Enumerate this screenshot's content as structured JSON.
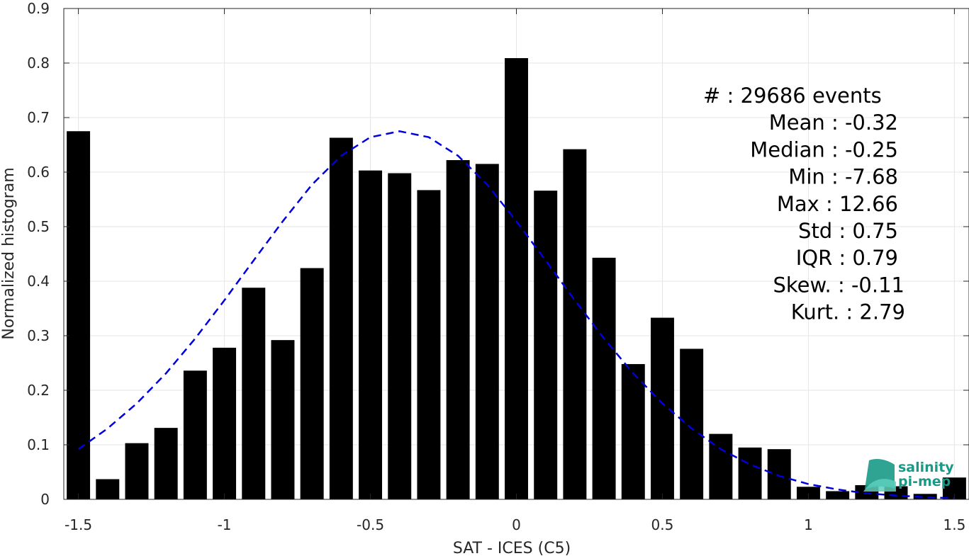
{
  "chart_data": {
    "type": "bar",
    "xlabel": "SAT - ICES (C5)",
    "ylabel": "Normalized histogram",
    "xlim": [
      -1.55,
      1.55
    ],
    "ylim": [
      0,
      0.9
    ],
    "grid": true,
    "x_ticks": [
      -1.5,
      -1,
      -0.5,
      0,
      0.5,
      1,
      1.5
    ],
    "x_tick_labels": [
      "-1.5",
      "-1",
      "-0.5",
      "0",
      "0.5",
      "1",
      "1.5"
    ],
    "y_ticks": [
      0,
      0.1,
      0.2,
      0.3,
      0.4,
      0.5,
      0.6,
      0.7,
      0.8,
      0.9
    ],
    "y_tick_labels": [
      "0",
      "0.1",
      "0.2",
      "0.3",
      "0.4",
      "0.5",
      "0.6",
      "0.7",
      "0.8",
      "0.9"
    ],
    "bars": {
      "x": [
        -1.5,
        -1.4,
        -1.3,
        -1.2,
        -1.1,
        -1.0,
        -0.9,
        -0.8,
        -0.7,
        -0.6,
        -0.5,
        -0.4,
        -0.3,
        -0.2,
        -0.1,
        0.0,
        0.1,
        0.2,
        0.3,
        0.4,
        0.5,
        0.6,
        0.7,
        0.8,
        0.9,
        1.0,
        1.1,
        1.2,
        1.3,
        1.4,
        1.5
      ],
      "values": [
        0.675,
        0.037,
        0.103,
        0.131,
        0.236,
        0.278,
        0.388,
        0.292,
        0.424,
        0.663,
        0.603,
        0.598,
        0.567,
        0.622,
        0.615,
        0.809,
        0.566,
        0.642,
        0.443,
        0.248,
        0.333,
        0.276,
        0.12,
        0.095,
        0.092,
        0.023,
        0.015,
        0.026,
        0.024,
        0.01,
        0.04
      ],
      "width": 0.08,
      "color": "#000000"
    },
    "fit_curve": {
      "style": "dashed",
      "color": "#0000dd",
      "x": [
        -1.5,
        -1.4,
        -1.3,
        -1.2,
        -1.1,
        -1.0,
        -0.9,
        -0.8,
        -0.7,
        -0.6,
        -0.5,
        -0.4,
        -0.3,
        -0.2,
        -0.1,
        0.0,
        0.1,
        0.2,
        0.3,
        0.4,
        0.5,
        0.6,
        0.7,
        0.8,
        0.9,
        1.0,
        1.1,
        1.2,
        1.3,
        1.4,
        1.5
      ],
      "y": [
        0.092,
        0.13,
        0.176,
        0.231,
        0.295,
        0.365,
        0.438,
        0.51,
        0.577,
        0.63,
        0.664,
        0.675,
        0.664,
        0.63,
        0.577,
        0.51,
        0.438,
        0.365,
        0.295,
        0.231,
        0.176,
        0.13,
        0.092,
        0.064,
        0.043,
        0.028,
        0.018,
        0.011,
        0.007,
        0.004,
        0.002
      ]
    },
    "annotations": [
      "#  : 29686 events",
      "Mean : -0.32",
      "Median : -0.25",
      "Min : -7.68",
      "Max : 12.66",
      "Std : 0.75",
      "IQR : 0.79",
      "Skew. : -0.11",
      "Kurt. : 2.79"
    ]
  },
  "logo": {
    "line1": "salinity",
    "line2": "pi-mep",
    "color_dark": "#1a9a86",
    "color_light": "#5ed0bd"
  }
}
